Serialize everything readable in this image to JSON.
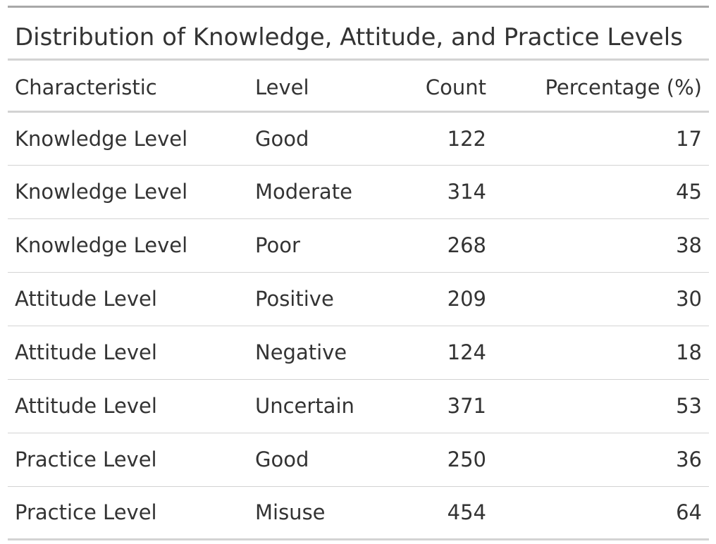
{
  "table": {
    "title": "Distribution of Knowledge, Attitude, and Practice Levels",
    "columns": [
      "Characteristic",
      "Level",
      "Count",
      "Percentage (%)"
    ],
    "rows": [
      [
        "Knowledge Level",
        "Good",
        "122",
        "17"
      ],
      [
        "Knowledge Level",
        "Moderate",
        "314",
        "45"
      ],
      [
        "Knowledge Level",
        "Poor",
        "268",
        "38"
      ],
      [
        "Attitude Level",
        "Positive",
        "209",
        "30"
      ],
      [
        "Attitude Level",
        "Negative",
        "124",
        "18"
      ],
      [
        "Attitude Level",
        "Uncertain",
        "371",
        "53"
      ],
      [
        "Practice Level",
        "Good",
        "250",
        "36"
      ],
      [
        "Practice Level",
        "Misuse",
        "454",
        "64"
      ]
    ]
  },
  "colors": {
    "text": "#333333",
    "rule_heavy": "#a8a8a8",
    "rule_light": "#d3d3d3",
    "background": "#ffffff"
  }
}
